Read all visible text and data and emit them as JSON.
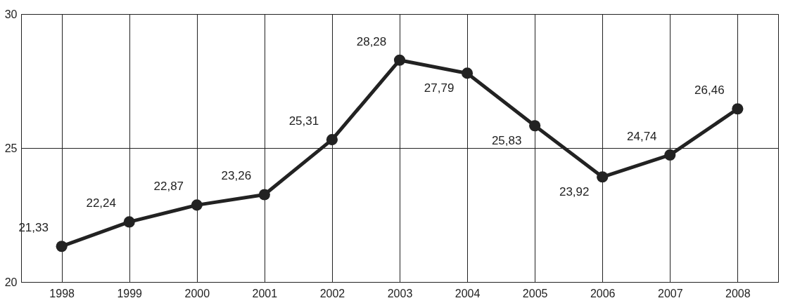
{
  "chart_data": {
    "type": "line",
    "categories": [
      "1998",
      "1999",
      "2000",
      "2001",
      "2002",
      "2003",
      "2004",
      "2005",
      "2006",
      "2007",
      "2008"
    ],
    "series": [
      {
        "color": "#222222",
        "values": [
          21.33,
          22.24,
          22.87,
          23.26,
          25.31,
          28.28,
          27.79,
          25.83,
          23.92,
          24.74,
          26.46
        ]
      }
    ],
    "value_labels": [
      "21,33",
      "22,24",
      "22,87",
      "23,26",
      "25,31",
      "28,28",
      "27,79",
      "25,83",
      "23,92",
      "24,74",
      "26,46"
    ],
    "ylim": [
      20,
      30
    ],
    "yticks": [
      20,
      25,
      30
    ],
    "grid": true,
    "marker": "circle",
    "line_style": "solid"
  }
}
